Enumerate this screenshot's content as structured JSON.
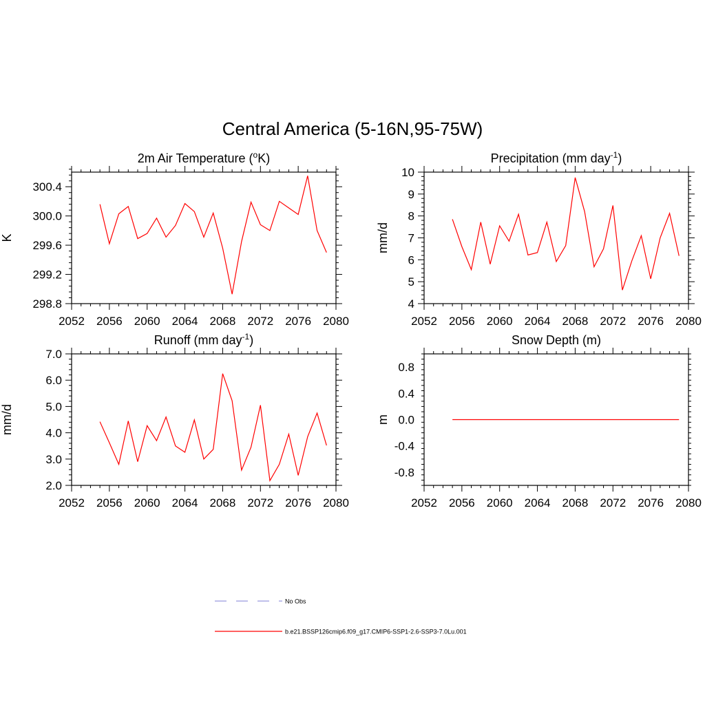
{
  "figure": {
    "title": "Central America (5-16N,95-75W)"
  },
  "legend": {
    "entries": [
      {
        "label": "No Obs",
        "color": "#9999dd",
        "style": "dashed"
      },
      {
        "label": "b.e21.BSSP126cmip6.f09_g17.CMIP6-SSP1-2.6-SSP3-7.0Lu.001",
        "color": "#ff0000",
        "style": "solid"
      }
    ]
  },
  "chart_data": [
    {
      "type": "line",
      "title": "2m Air Temperature (",
      "title_super": "o",
      "title_after": "K)",
      "xlabel": "",
      "ylabel": "K",
      "xlim": [
        2052,
        2080
      ],
      "ylim": [
        298.8,
        300.6
      ],
      "xticks": [
        2052,
        2056,
        2060,
        2064,
        2068,
        2072,
        2076,
        2080
      ],
      "xtick_labels": [
        "2052",
        "2056",
        "2060",
        "2064",
        "2068",
        "2072",
        "2076",
        "2080"
      ],
      "yticks": [
        298.8,
        299.2,
        299.6,
        300.0,
        300.4
      ],
      "ytick_labels": [
        "298.8",
        "299.2",
        "299.6",
        "300.0",
        "300.4"
      ],
      "minor_x_step": 1,
      "minor_y_step": 0.08,
      "grid": false,
      "series": [
        {
          "color": "#ff0000",
          "x": [
            2055,
            2056,
            2057,
            2058,
            2059,
            2060,
            2061,
            2062,
            2063,
            2064,
            2065,
            2066,
            2067,
            2068,
            2069,
            2070,
            2071,
            2072,
            2073,
            2074,
            2075,
            2076,
            2077,
            2078,
            2079
          ],
          "values": [
            300.16,
            299.62,
            300.03,
            300.13,
            299.69,
            299.76,
            299.97,
            299.71,
            299.87,
            300.17,
            300.06,
            299.71,
            300.04,
            299.56,
            298.93,
            299.65,
            300.19,
            299.88,
            299.8,
            300.2,
            300.11,
            300.02,
            300.55,
            299.8,
            299.5
          ]
        }
      ]
    },
    {
      "type": "line",
      "title": "Precipitation (mm day",
      "title_super": "-1",
      "title_after": ")",
      "xlabel": "",
      "ylabel": "mm/d",
      "xlim": [
        2052,
        2080
      ],
      "ylim": [
        4,
        10
      ],
      "xticks": [
        2052,
        2056,
        2060,
        2064,
        2068,
        2072,
        2076,
        2080
      ],
      "xtick_labels": [
        "2052",
        "2056",
        "2060",
        "2064",
        "2068",
        "2072",
        "2076",
        "2080"
      ],
      "yticks": [
        4,
        5,
        6,
        7,
        8,
        9,
        10
      ],
      "ytick_labels": [
        "4",
        "5",
        "6",
        "7",
        "8",
        "9",
        "10"
      ],
      "minor_x_step": 1,
      "minor_y_step": 0.2,
      "grid": false,
      "series": [
        {
          "color": "#ff0000",
          "x": [
            2055,
            2056,
            2057,
            2058,
            2059,
            2060,
            2061,
            2062,
            2063,
            2064,
            2065,
            2066,
            2067,
            2068,
            2069,
            2070,
            2071,
            2072,
            2073,
            2074,
            2075,
            2076,
            2077,
            2078,
            2079
          ],
          "values": [
            7.85,
            6.6,
            5.55,
            7.72,
            5.8,
            7.55,
            6.85,
            8.08,
            6.22,
            6.33,
            7.72,
            5.92,
            6.65,
            9.75,
            8.2,
            5.68,
            6.5,
            8.48,
            4.62,
            5.95,
            7.1,
            5.13,
            7.0,
            8.12,
            6.18
          ]
        }
      ]
    },
    {
      "type": "line",
      "title": "Runoff (mm day",
      "title_super": "-1",
      "title_after": ")",
      "xlabel": "",
      "ylabel": "mm/d",
      "xlim": [
        2052,
        2080
      ],
      "ylim": [
        2.0,
        7.0
      ],
      "xticks": [
        2052,
        2056,
        2060,
        2064,
        2068,
        2072,
        2076,
        2080
      ],
      "xtick_labels": [
        "2052",
        "2056",
        "2060",
        "2064",
        "2068",
        "2072",
        "2076",
        "2080"
      ],
      "yticks": [
        2.0,
        3.0,
        4.0,
        5.0,
        6.0,
        7.0
      ],
      "ytick_labels": [
        "2.0",
        "3.0",
        "4.0",
        "5.0",
        "6.0",
        "7.0"
      ],
      "minor_x_step": 1,
      "minor_y_step": 0.2,
      "grid": false,
      "series": [
        {
          "color": "#ff0000",
          "x": [
            2055,
            2056,
            2057,
            2058,
            2059,
            2060,
            2061,
            2062,
            2063,
            2064,
            2065,
            2066,
            2067,
            2068,
            2069,
            2070,
            2071,
            2072,
            2073,
            2074,
            2075,
            2076,
            2077,
            2078,
            2079
          ],
          "values": [
            4.42,
            3.62,
            2.8,
            4.45,
            2.9,
            4.27,
            3.7,
            4.6,
            3.5,
            3.26,
            4.49,
            3.0,
            3.37,
            6.25,
            5.22,
            2.58,
            3.45,
            5.05,
            2.18,
            2.8,
            3.95,
            2.38,
            3.85,
            4.75,
            3.52
          ]
        }
      ]
    },
    {
      "type": "line",
      "title": "Snow Depth (m)",
      "title_super": "",
      "title_after": "",
      "xlabel": "",
      "ylabel": "m",
      "xlim": [
        2052,
        2080
      ],
      "ylim": [
        -1.0,
        1.0
      ],
      "xticks": [
        2052,
        2056,
        2060,
        2064,
        2068,
        2072,
        2076,
        2080
      ],
      "xtick_labels": [
        "2052",
        "2056",
        "2060",
        "2064",
        "2068",
        "2072",
        "2076",
        "2080"
      ],
      "yticks": [
        -0.8,
        -0.4,
        0.0,
        0.4,
        0.8
      ],
      "ytick_labels": [
        "-0.8",
        "-0.4",
        "0.0",
        "0.4",
        "0.8"
      ],
      "minor_x_step": 1,
      "minor_y_step": 0.08,
      "grid": false,
      "series": [
        {
          "color": "#ff0000",
          "x": [
            2055,
            2056,
            2057,
            2058,
            2059,
            2060,
            2061,
            2062,
            2063,
            2064,
            2065,
            2066,
            2067,
            2068,
            2069,
            2070,
            2071,
            2072,
            2073,
            2074,
            2075,
            2076,
            2077,
            2078,
            2079
          ],
          "values": [
            0,
            0,
            0,
            0,
            0,
            0,
            0,
            0,
            0,
            0,
            0,
            0,
            0,
            0,
            0,
            0,
            0,
            0,
            0,
            0,
            0,
            0,
            0,
            0,
            0
          ]
        }
      ]
    }
  ]
}
